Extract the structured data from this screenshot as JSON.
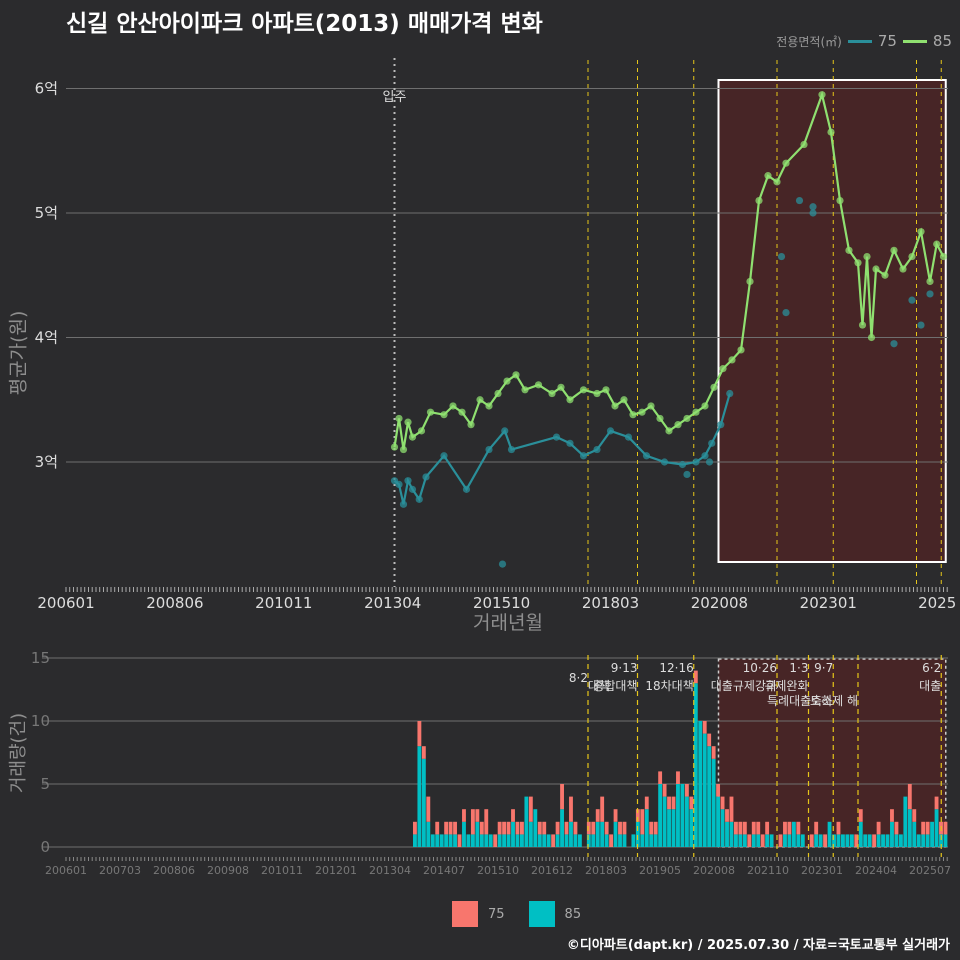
{
  "title": "신길 안산아이파크 아파트(2013) 매매가격 변화",
  "credit": "©디아파트(dapt.kr) / 2025.07.30 / 자료=국토교통부 실거래가",
  "colors": {
    "s75_line": "#2a8f9a",
    "s85_line": "#8fe070",
    "bar75": "#f8766d",
    "bar85": "#00bfc4",
    "highlight": "#6b1f1f",
    "policy": "#e6c619",
    "move_in": "#bbbbbb"
  },
  "chart_data": [
    {
      "type": "line",
      "title": "신길 안산아이파크 아파트(2013) 매매가격 변화",
      "xlabel": "거래년월",
      "ylabel": "평균가(원)",
      "x_ticks": [
        "200601",
        "200806",
        "201011",
        "201304",
        "201510",
        "201803",
        "202008",
        "202301",
        "2025"
      ],
      "y_ticks": [
        {
          "value": 3,
          "label": "3억"
        },
        {
          "value": 4,
          "label": "4억"
        },
        {
          "value": 5,
          "label": "5억"
        },
        {
          "value": 6,
          "label": "6억"
        }
      ],
      "xlim": [
        2006.0,
        2025.6
      ],
      "ylim": [
        2.0,
        6.3
      ],
      "legend_title": "전용면적(㎡)",
      "move_in": {
        "label": "입주",
        "x": 2013.3
      },
      "highlight_range": [
        2020.5,
        2025.55
      ],
      "policy_dates": [
        2017.6,
        2018.7,
        2019.95,
        2021.8,
        2023.05,
        2024.9,
        2025.45
      ],
      "series": [
        {
          "name": "75",
          "points": [
            [
              2013.3,
              2.85
            ],
            [
              2013.4,
              2.82
            ],
            [
              2013.5,
              2.66
            ],
            [
              2013.6,
              2.85
            ],
            [
              2013.7,
              2.78
            ],
            [
              2013.85,
              2.7
            ],
            [
              2014.0,
              2.88
            ],
            [
              2014.4,
              3.05
            ],
            [
              2014.9,
              2.78
            ],
            [
              2015.4,
              3.1
            ],
            [
              2015.75,
              3.25
            ],
            [
              2015.9,
              3.1
            ],
            [
              2016.9,
              3.2
            ],
            [
              2017.2,
              3.15
            ],
            [
              2017.5,
              3.05
            ],
            [
              2017.8,
              3.1
            ],
            [
              2018.1,
              3.25
            ],
            [
              2018.5,
              3.2
            ],
            [
              2018.9,
              3.05
            ],
            [
              2019.3,
              3.0
            ],
            [
              2019.7,
              2.98
            ],
            [
              2020.0,
              3.0
            ],
            [
              2020.2,
              3.05
            ],
            [
              2020.35,
              3.15
            ],
            [
              2020.55,
              3.3
            ],
            [
              2020.75,
              3.55
            ]
          ],
          "dots": [
            [
              2015.7,
              2.18
            ],
            [
              2019.8,
              2.9
            ],
            [
              2020.3,
              3.0
            ],
            [
              2022.0,
              4.2
            ],
            [
              2021.9,
              4.65
            ],
            [
              2022.3,
              5.1
            ],
            [
              2022.6,
              5.05
            ],
            [
              2022.6,
              5.0
            ],
            [
              2024.4,
              3.95
            ],
            [
              2024.8,
              4.3
            ],
            [
              2025.0,
              4.1
            ],
            [
              2025.2,
              4.35
            ]
          ]
        },
        {
          "name": "85",
          "points": [
            [
              2013.3,
              3.12
            ],
            [
              2013.4,
              3.35
            ],
            [
              2013.5,
              3.1
            ],
            [
              2013.6,
              3.32
            ],
            [
              2013.7,
              3.2
            ],
            [
              2013.9,
              3.25
            ],
            [
              2014.1,
              3.4
            ],
            [
              2014.4,
              3.38
            ],
            [
              2014.6,
              3.45
            ],
            [
              2014.8,
              3.4
            ],
            [
              2015.0,
              3.3
            ],
            [
              2015.2,
              3.5
            ],
            [
              2015.4,
              3.45
            ],
            [
              2015.6,
              3.55
            ],
            [
              2015.8,
              3.65
            ],
            [
              2016.0,
              3.7
            ],
            [
              2016.2,
              3.58
            ],
            [
              2016.5,
              3.62
            ],
            [
              2016.8,
              3.55
            ],
            [
              2017.0,
              3.6
            ],
            [
              2017.2,
              3.5
            ],
            [
              2017.5,
              3.58
            ],
            [
              2017.8,
              3.55
            ],
            [
              2018.0,
              3.58
            ],
            [
              2018.2,
              3.45
            ],
            [
              2018.4,
              3.5
            ],
            [
              2018.6,
              3.38
            ],
            [
              2018.8,
              3.4
            ],
            [
              2019.0,
              3.45
            ],
            [
              2019.2,
              3.35
            ],
            [
              2019.4,
              3.25
            ],
            [
              2019.6,
              3.3
            ],
            [
              2019.8,
              3.35
            ],
            [
              2020.0,
              3.4
            ],
            [
              2020.2,
              3.45
            ],
            [
              2020.4,
              3.6
            ],
            [
              2020.6,
              3.75
            ],
            [
              2020.8,
              3.82
            ],
            [
              2021.0,
              3.9
            ],
            [
              2021.2,
              4.45
            ],
            [
              2021.4,
              5.1
            ],
            [
              2021.6,
              5.3
            ],
            [
              2021.8,
              5.25
            ],
            [
              2022.0,
              5.4
            ],
            [
              2022.4,
              5.55
            ],
            [
              2022.8,
              5.95
            ],
            [
              2023.0,
              5.65
            ],
            [
              2023.2,
              5.1
            ],
            [
              2023.4,
              4.7
            ],
            [
              2023.6,
              4.6
            ],
            [
              2023.7,
              4.1
            ],
            [
              2023.8,
              4.65
            ],
            [
              2023.9,
              4.0
            ],
            [
              2024.0,
              4.55
            ],
            [
              2024.2,
              4.5
            ],
            [
              2024.4,
              4.7
            ],
            [
              2024.6,
              4.55
            ],
            [
              2024.8,
              4.65
            ],
            [
              2025.0,
              4.85
            ],
            [
              2025.2,
              4.45
            ],
            [
              2025.35,
              4.75
            ],
            [
              2025.5,
              4.65
            ]
          ]
        }
      ]
    },
    {
      "type": "bar",
      "ylabel": "거래량(건)",
      "x_ticks": [
        "200601",
        "200703",
        "200806",
        "200908",
        "201011",
        "201201",
        "201304",
        "201407",
        "201510",
        "201612",
        "201803",
        "201905",
        "202008",
        "202110",
        "202301",
        "202404",
        "202507"
      ],
      "y_ticks": [
        0,
        5,
        10,
        15
      ],
      "ylim": [
        0,
        15
      ],
      "highlight_range": [
        2020.5,
        2025.55
      ],
      "policy_lines": [
        {
          "x": 2017.6,
          "date": "8·2",
          "label": "대책"
        },
        {
          "x": 2018.7,
          "date": "9·13",
          "label": "종합대책"
        },
        {
          "x": 2019.95,
          "date": "12·16",
          "label": "18차대책"
        },
        {
          "x": 2021.8,
          "date": "10·26",
          "label": "대출규제강화"
        },
        {
          "x": 2022.5,
          "date": "1·3",
          "label": "규제완화"
        },
        {
          "x": 2023.05,
          "date": "9·7",
          "label": "특례대출축소"
        },
        {
          "x": 2023.6,
          "date": "",
          "label": "토허제 해"
        },
        {
          "x": 2025.45,
          "date": "6·2",
          "label": "대출"
        }
      ],
      "series": [
        {
          "name": "75",
          "color": "#f8766d",
          "values": [
            1,
            2,
            1,
            2,
            0,
            1,
            0,
            1,
            1,
            1,
            1,
            1,
            0,
            2,
            1,
            1,
            2,
            0,
            1,
            1,
            1,
            1,
            1,
            1,
            1,
            0,
            2,
            0,
            1,
            1,
            0,
            1,
            1,
            2,
            1,
            2,
            1,
            0,
            0,
            1,
            1,
            1,
            2,
            1,
            1,
            1,
            1,
            1,
            0,
            0,
            1,
            2,
            1,
            1,
            1,
            1,
            1,
            1,
            1,
            1,
            0,
            1,
            1,
            1,
            0,
            1,
            1,
            1,
            1,
            1,
            1,
            2,
            1,
            1,
            1,
            1,
            1,
            1,
            1,
            1,
            0,
            0,
            1,
            1,
            1,
            0,
            1,
            0,
            0,
            1,
            1,
            0,
            1,
            0,
            0,
            1,
            0,
            0,
            0,
            1,
            1,
            0,
            0,
            1,
            1,
            0,
            0,
            1,
            1,
            0,
            0,
            2,
            1,
            0,
            1,
            1,
            0,
            1,
            1,
            1
          ]
        },
        {
          "name": "85",
          "color": "#00bfc4",
          "values": [
            1,
            8,
            7,
            2,
            1,
            1,
            1,
            1,
            1,
            1,
            0,
            2,
            1,
            1,
            2,
            1,
            1,
            1,
            0,
            1,
            1,
            1,
            2,
            1,
            1,
            4,
            2,
            3,
            1,
            1,
            1,
            0,
            1,
            3,
            1,
            2,
            1,
            1,
            0,
            1,
            1,
            2,
            2,
            1,
            0,
            2,
            1,
            1,
            0,
            1,
            2,
            1,
            3,
            1,
            1,
            5,
            4,
            3,
            3,
            5,
            5,
            4,
            3,
            13,
            10,
            9,
            8,
            7,
            4,
            3,
            2,
            2,
            1,
            1,
            1,
            0,
            1,
            1,
            0,
            1,
            1,
            0,
            0,
            1,
            1,
            2,
            1,
            1,
            0,
            0,
            1,
            1,
            0,
            2,
            1,
            1,
            1,
            1,
            1,
            0,
            2,
            1,
            1,
            0,
            1,
            1,
            1,
            2,
            1,
            1,
            4,
            3,
            2,
            1,
            1,
            1,
            2,
            3,
            1,
            1
          ]
        }
      ]
    }
  ],
  "legend_bottom": [
    {
      "name": "75"
    },
    {
      "name": "85"
    }
  ]
}
